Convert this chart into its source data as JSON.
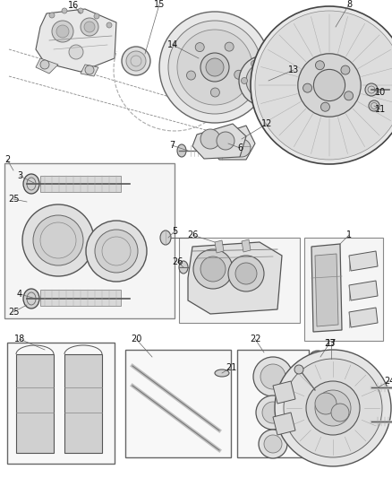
{
  "bg_color": "#ffffff",
  "line_color": "#555555",
  "text_color": "#111111",
  "fig_width": 4.38,
  "fig_height": 5.33,
  "dpi": 100
}
